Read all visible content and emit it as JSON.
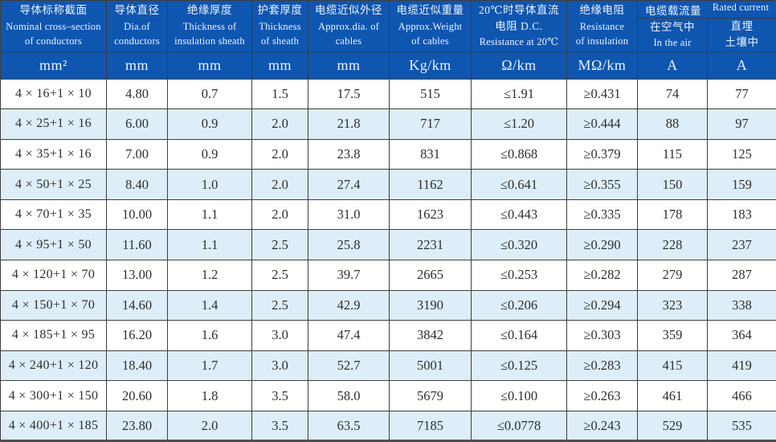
{
  "table": {
    "columns": [
      {
        "lines": [
          "导体标称截面",
          "Nominal cross–section",
          "of conductors"
        ],
        "unit": "mm²"
      },
      {
        "lines": [
          "导体直径",
          "Dia.of",
          "conductors"
        ],
        "unit": "mm"
      },
      {
        "lines": [
          "绝缘厚度",
          "Thickness of",
          "insulation sheath"
        ],
        "unit": "mm"
      },
      {
        "lines": [
          "护套厚度",
          "Thickness",
          "of sheath"
        ],
        "unit": "mm"
      },
      {
        "lines": [
          "电缆近似外径",
          "Approx.dia. of",
          "cables"
        ],
        "unit": "mm"
      },
      {
        "lines": [
          "电缆近似重量",
          "Approx.Weight",
          "of cables"
        ],
        "unit": "Kg/km"
      },
      {
        "lines": [
          "20℃时导体直流",
          "电阻 D.C.",
          "Resistance at 20℃"
        ],
        "unit": "Ω/km"
      },
      {
        "lines": [
          "绝缘电阻",
          "Resistance",
          "of insulation"
        ],
        "unit": "MΩ/km"
      }
    ],
    "rated_group": {
      "zh": "电缆载流量",
      "en": "Rated current",
      "sub": [
        {
          "lines": [
            "在空气中",
            "In the air"
          ],
          "unit": "A"
        },
        {
          "lines": [
            "直埋",
            "土壤中"
          ],
          "unit": "A"
        }
      ]
    },
    "rows": [
      [
        "4 × 16+1 × 10",
        "4.80",
        "0.7",
        "1.5",
        "17.5",
        "515",
        "≤1.91",
        "≥0.431",
        "74",
        "77"
      ],
      [
        "4 × 25+1 × 16",
        "6.00",
        "0.9",
        "2.0",
        "21.8",
        "717",
        "≤1.20",
        "≥0.444",
        "88",
        "97"
      ],
      [
        "4 × 35+1 × 16",
        "7.00",
        "0.9",
        "2.0",
        "23.8",
        "831",
        "≤0.868",
        "≥0.379",
        "115",
        "125"
      ],
      [
        "4 × 50+1 × 25",
        "8.40",
        "1.0",
        "2.0",
        "27.4",
        "1162",
        "≤0.641",
        "≥0.355",
        "150",
        "159"
      ],
      [
        "4 × 70+1 × 35",
        "10.00",
        "1.1",
        "2.0",
        "31.0",
        "1623",
        "≤0.443",
        "≥0.335",
        "178",
        "183"
      ],
      [
        "4 × 95+1 × 50",
        "11.60",
        "1.1",
        "2.5",
        "25.8",
        "2231",
        "≤0.320",
        "≥0.290",
        "228",
        "237"
      ],
      [
        "4 × 120+1 × 70",
        "13.00",
        "1.2",
        "2.5",
        "39.7",
        "2665",
        "≤0.253",
        "≥0.282",
        "279",
        "287"
      ],
      [
        "4 × 150+1 × 70",
        "14.60",
        "1.4",
        "2.5",
        "42.9",
        "3190",
        "≤0.206",
        "≥0.294",
        "323",
        "338"
      ],
      [
        "4 × 185+1 × 95",
        "16.20",
        "1.6",
        "3.0",
        "47.4",
        "3842",
        "≤0.164",
        "≥0.303",
        "359",
        "364"
      ],
      [
        "4 × 240+1 × 120",
        "18.40",
        "1.7",
        "3.0",
        "52.7",
        "5001",
        "≤0.125",
        "≥0.283",
        "415",
        "419"
      ],
      [
        "4 × 300+1 × 150",
        "20.60",
        "1.8",
        "3.5",
        "58.0",
        "5679",
        "≤0.100",
        "≥0.263",
        "461",
        "466"
      ],
      [
        "4 × 400+1 × 185",
        "23.80",
        "2.0",
        "3.5",
        "63.5",
        "7185",
        "≤0.0778",
        "≥0.243",
        "529",
        "535"
      ]
    ],
    "colors": {
      "header_bg": "#0f56b0",
      "header_text": "#edf3fb",
      "alt_row_bg": "#ddeef9",
      "grid_line": "#3e3e3e",
      "data_text": "#2e2e2e"
    }
  }
}
